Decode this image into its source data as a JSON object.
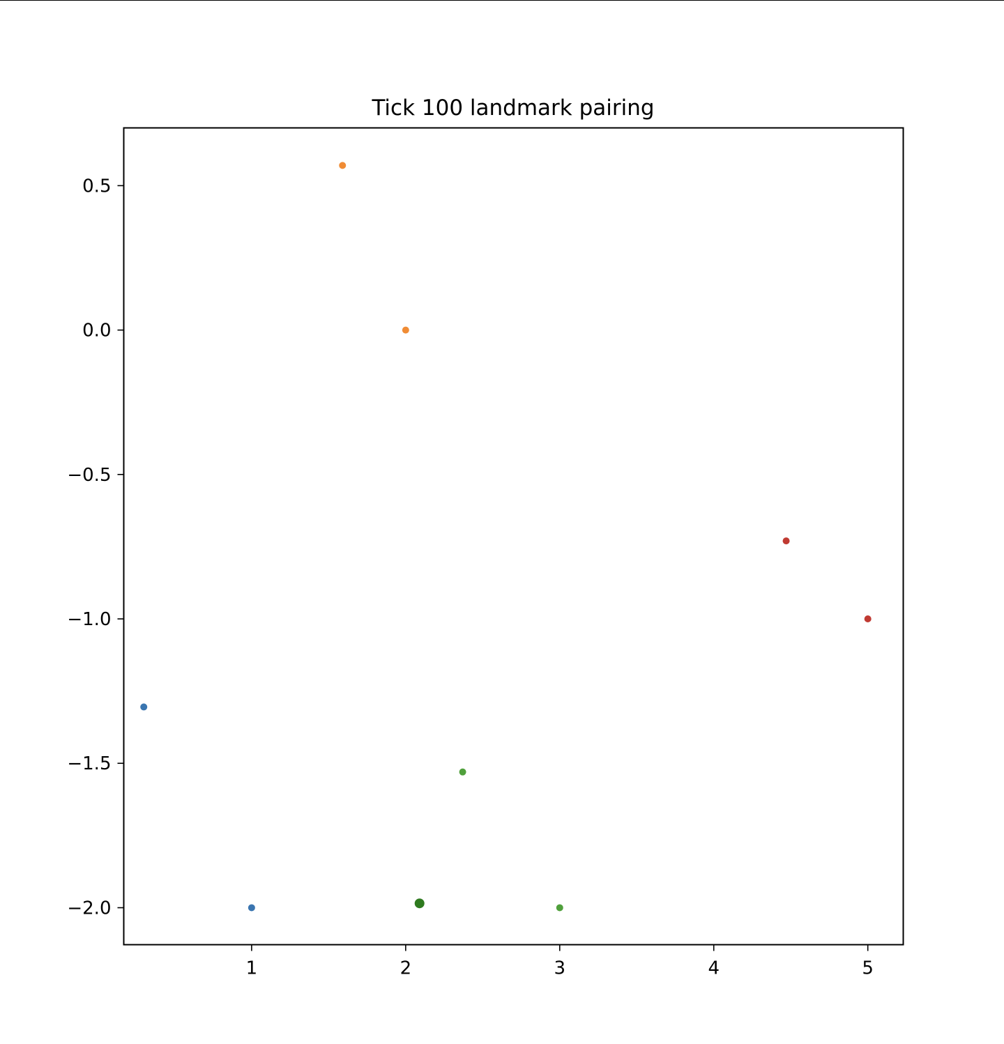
{
  "chart_data": {
    "type": "scatter",
    "title": "Tick 100 landmark pairing",
    "xlabel": "",
    "ylabel": "",
    "xlim": [
      0.17,
      5.23
    ],
    "ylim": [
      -2.128,
      0.7
    ],
    "xticks": [
      1,
      2,
      3,
      4,
      5
    ],
    "xtick_labels": [
      "1",
      "2",
      "3",
      "4",
      "5"
    ],
    "yticks": [
      0.5,
      0.0,
      -0.5,
      -1.0,
      -1.5,
      -2.0
    ],
    "ytick_labels": [
      "0.5",
      "0.0",
      "−0.5",
      "−1.0",
      "−1.5",
      "−2.0"
    ],
    "grid": false,
    "legend": "none",
    "series": [
      {
        "color": "#3a75b0",
        "points": [
          [
            0.3,
            -1.305
          ],
          [
            1.0,
            -2.0
          ]
        ]
      },
      {
        "color": "#f08c35",
        "points": [
          [
            1.59,
            0.57
          ],
          [
            2.0,
            0.0
          ]
        ]
      },
      {
        "color": "#50a03c",
        "points": [
          [
            2.37,
            -1.53
          ],
          [
            3.0,
            -2.0
          ]
        ]
      },
      {
        "color": "#c03a32",
        "points": [
          [
            4.47,
            -0.73
          ],
          [
            5.0,
            -1.0
          ]
        ]
      },
      {
        "color": "#2e7a1f",
        "marker": "large",
        "points": [
          [
            2.09,
            -1.985
          ]
        ]
      }
    ]
  }
}
